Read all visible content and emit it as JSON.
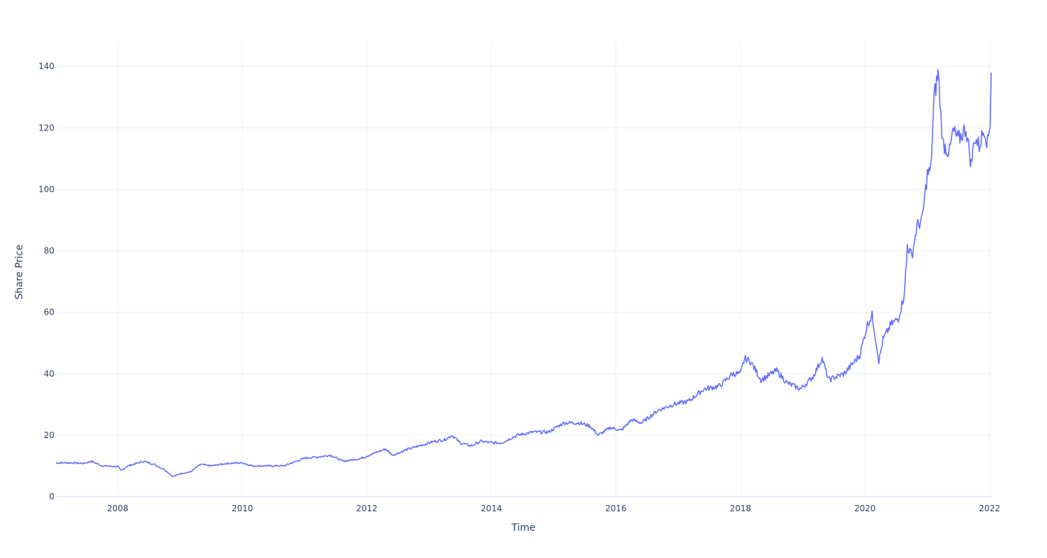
{
  "chart_data": {
    "type": "line",
    "xlabel": "Time",
    "ylabel": "Share Price",
    "x_range": [
      "2007-01-03",
      "2022-01-10"
    ],
    "ylim": [
      0,
      148
    ],
    "x_ticks": [
      "2008",
      "2010",
      "2012",
      "2014",
      "2016",
      "2018",
      "2020",
      "2022"
    ],
    "y_ticks": [
      0,
      20,
      40,
      60,
      80,
      100,
      120,
      140
    ],
    "grid": true,
    "legend": "none",
    "line_color": "#636efa",
    "series": [
      {
        "x": [
          "2007-01-03",
          "2007-04-01",
          "2007-06-15",
          "2007-08-01",
          "2007-10-01",
          "2008-01-01",
          "2008-01-20",
          "2008-03-01",
          "2008-06-01",
          "2008-08-01",
          "2008-10-01",
          "2008-11-20",
          "2009-01-01",
          "2009-03-01",
          "2009-05-01",
          "2009-07-01",
          "2009-10-01",
          "2010-01-01",
          "2010-03-01",
          "2010-06-01",
          "2010-09-01",
          "2011-01-01",
          "2011-04-01",
          "2011-06-01",
          "2011-08-15",
          "2011-12-01",
          "2012-03-01",
          "2012-04-20",
          "2012-06-01",
          "2012-09-01",
          "2012-12-01",
          "2013-02-01",
          "2013-04-01",
          "2013-05-15",
          "2013-07-01",
          "2013-09-01",
          "2013-11-01",
          "2014-01-01",
          "2014-03-01",
          "2014-06-01",
          "2014-09-01",
          "2014-12-01",
          "2015-03-01",
          "2015-06-01",
          "2015-08-01",
          "2015-09-20",
          "2015-12-01",
          "2016-02-01",
          "2016-04-01",
          "2016-06-01",
          "2016-09-01",
          "2016-12-01",
          "2017-03-01",
          "2017-06-01",
          "2017-09-01",
          "2017-11-15",
          "2018-01-01",
          "2018-01-25",
          "2018-03-01",
          "2018-05-01",
          "2018-06-01",
          "2018-08-01",
          "2018-10-01",
          "2018-12-20",
          "2019-03-01",
          "2019-04-25",
          "2019-06-01",
          "2019-09-01",
          "2019-12-01",
          "2020-01-15",
          "2020-02-12",
          "2020-03-23",
          "2020-04-15",
          "2020-06-01",
          "2020-07-15",
          "2020-08-15",
          "2020-09-01",
          "2020-09-05",
          "2020-10-01",
          "2020-11-01",
          "2020-12-01",
          "2021-01-01",
          "2021-01-20",
          "2021-02-10",
          "2021-03-05",
          "2021-04-01",
          "2021-05-10",
          "2021-06-01",
          "2021-07-01",
          "2021-08-15",
          "2021-09-15",
          "2021-10-05",
          "2021-11-01",
          "2021-12-01",
          "2021-12-20",
          "2022-01-04",
          "2022-01-10"
        ],
        "values": [
          11,
          11,
          10.8,
          11.5,
          10,
          9.8,
          8.5,
          10,
          11.5,
          10.5,
          8.8,
          6.5,
          7.5,
          8,
          10.5,
          10,
          10.8,
          11,
          10,
          10,
          10,
          12.5,
          13,
          13.5,
          11.5,
          12.5,
          14.5,
          15.5,
          13.5,
          15.5,
          17,
          18,
          18.5,
          20,
          17.5,
          16.5,
          18,
          17.5,
          17.5,
          20,
          21,
          21,
          24,
          24,
          23,
          20,
          22.5,
          21.5,
          25,
          24,
          28,
          30,
          31,
          35,
          36,
          40,
          40,
          45,
          44,
          38,
          39,
          41,
          37,
          35,
          39,
          45,
          38,
          40,
          46,
          56,
          59,
          44,
          51,
          56,
          58,
          65,
          76,
          82,
          78,
          88,
          90,
          105,
          106,
          130,
          138,
          115,
          112,
          119,
          116,
          120,
          108,
          117,
          114,
          120,
          115,
          122,
          138
        ]
      }
    ]
  }
}
